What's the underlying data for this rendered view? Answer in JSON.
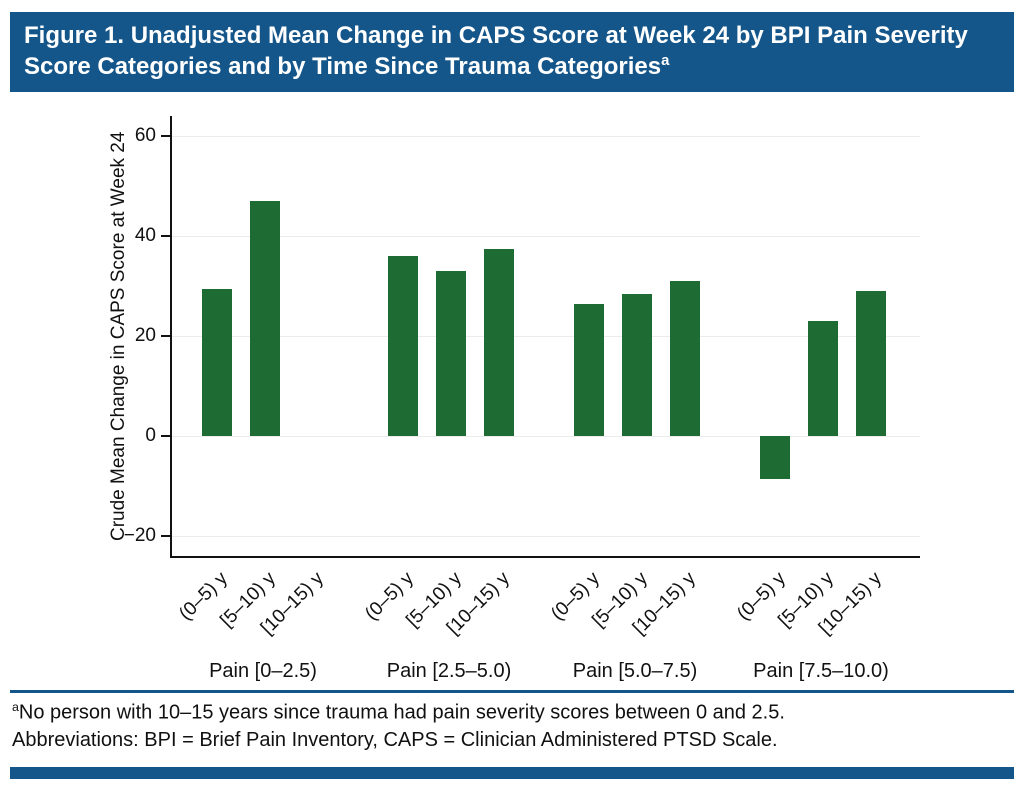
{
  "figure": {
    "title": "Figure 1. Unadjusted Mean Change in CAPS Score at Week 24 by BPI Pain Severity Score Categories and by Time Since Trauma Categories",
    "title_superscript": "a"
  },
  "footnotes": {
    "note1_superscript": "a",
    "note1": "No person with 10–15 years since trauma had pain severity scores between 0 and 2.5.",
    "note2": "Abbreviations: BPI = Brief Pain Inventory, CAPS = Clinician Administered PTSD Scale."
  },
  "colors": {
    "bar": "#1e6b34",
    "header_blue": "#15568a"
  },
  "chart_data": {
    "type": "bar",
    "title": "Unadjusted Mean Change in CAPS Score at Week 24 by BPI Pain Severity Score Categories and by Time Since Trauma Categories",
    "ylabel": "Crude Mean Change in CAPS Score at Week 24",
    "xlabel": "",
    "ylim": [
      -24,
      64
    ],
    "yticks": [
      -20,
      0,
      20,
      40,
      60
    ],
    "grid": true,
    "legend": "none",
    "groups": [
      {
        "label": "Pain [0–2.5)",
        "bars": [
          {
            "x": "(0–5) y",
            "value": 29.5
          },
          {
            "x": "[5–10) y",
            "value": 47
          },
          {
            "x": "[10–15) y",
            "value": null
          }
        ]
      },
      {
        "label": "Pain [2.5–5.0)",
        "bars": [
          {
            "x": "(0–5) y",
            "value": 36
          },
          {
            "x": "[5–10) y",
            "value": 33
          },
          {
            "x": "[10–15) y",
            "value": 37.5
          }
        ]
      },
      {
        "label": "Pain [5.0–7.5)",
        "bars": [
          {
            "x": "(0–5) y",
            "value": 26.5
          },
          {
            "x": "[5–10) y",
            "value": 28.5
          },
          {
            "x": "[10–15) y",
            "value": 31
          }
        ]
      },
      {
        "label": "Pain [7.5–10.0)",
        "bars": [
          {
            "x": "(0–5) y",
            "value": -8.5
          },
          {
            "x": "[5–10) y",
            "value": 23
          },
          {
            "x": "[10–15) y",
            "value": 29
          }
        ]
      }
    ]
  }
}
